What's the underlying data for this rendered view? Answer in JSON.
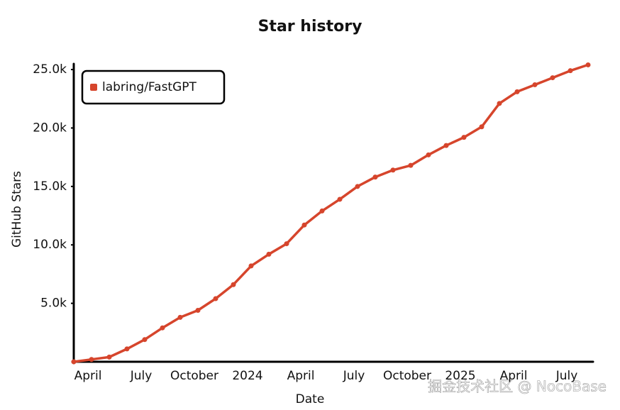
{
  "chart_data": {
    "type": "line",
    "title": "Star history",
    "x_label": "Date",
    "y_label": "GitHub Stars",
    "x": [
      "2023-03",
      "2023-04",
      "2023-05",
      "2023-06",
      "2023-07",
      "2023-08",
      "2023-09",
      "2023-10",
      "2023-11",
      "2023-12",
      "2024-01",
      "2024-02",
      "2024-03",
      "2024-04",
      "2024-05",
      "2024-06",
      "2024-07",
      "2024-08",
      "2024-09",
      "2024-10",
      "2024-11",
      "2024-12",
      "2025-01",
      "2025-02",
      "2025-03",
      "2025-04",
      "2025-05",
      "2025-06",
      "2025-07",
      "2025-08"
    ],
    "series": [
      {
        "name": "labring/FastGPT",
        "color": "#d6452c",
        "values": [
          0,
          200,
          400,
          1100,
          1900,
          2900,
          3800,
          4400,
          5400,
          6600,
          8200,
          9200,
          10100,
          11700,
          12900,
          13900,
          15000,
          15800,
          16400,
          16800,
          17700,
          18500,
          19200,
          20100,
          22100,
          23100,
          23700,
          24300,
          24900,
          25400
        ]
      }
    ],
    "xlim": [
      "2023-03",
      "2025-08"
    ],
    "xticks": [
      {
        "value": "2023-04",
        "label": "April"
      },
      {
        "value": "2023-07",
        "label": "July"
      },
      {
        "value": "2023-10",
        "label": "October"
      },
      {
        "value": "2024-01",
        "label": "2024"
      },
      {
        "value": "2024-04",
        "label": "April"
      },
      {
        "value": "2024-07",
        "label": "July"
      },
      {
        "value": "2024-10",
        "label": "October"
      },
      {
        "value": "2025-01",
        "label": "2025"
      },
      {
        "value": "2025-04",
        "label": "April"
      },
      {
        "value": "2025-07",
        "label": "July"
      }
    ],
    "ylim": [
      0,
      25500
    ],
    "yticks": [
      {
        "value": 5000,
        "label": "5.0k"
      },
      {
        "value": 10000,
        "label": "10.0k"
      },
      {
        "value": 15000,
        "label": "15.0k"
      },
      {
        "value": 20000,
        "label": "20.0k"
      },
      {
        "value": 25000,
        "label": "25.0k"
      }
    ],
    "legend": "top-left",
    "grid": false
  },
  "watermark": "掘金技术社区 @ NocoBase"
}
